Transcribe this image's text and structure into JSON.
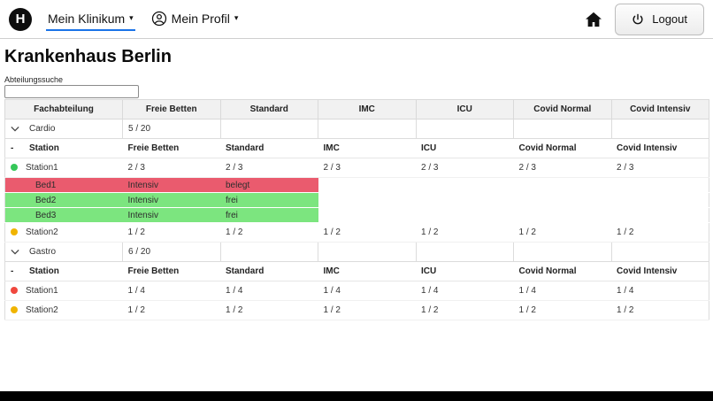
{
  "colors": {
    "accent_blue": "#1a73e8",
    "bed_occupied": "#ea5b6e",
    "bed_free": "#7ce57f",
    "status_green": "#35c759",
    "status_yellow": "#f0b400",
    "status_red": "#f0483e"
  },
  "navbar": {
    "brand_letter": "H",
    "menu_klinikum": "Mein Klinikum",
    "menu_profil": "Mein Profil",
    "logout_label": "Logout"
  },
  "page": {
    "title": "Krankenhaus Berlin",
    "search_label": "Abteilungssuche",
    "search_value": ""
  },
  "table": {
    "headers": [
      "Fachabteilung",
      "Freie Betten",
      "Standard",
      "IMC",
      "ICU",
      "Covid Normal",
      "Covid Intensiv"
    ],
    "station_headers": [
      "Station",
      "Freie Betten",
      "Standard",
      "IMC",
      "ICU",
      "Covid Normal",
      "Covid Intensiv"
    ],
    "collapse_symbol": "-",
    "departments": [
      {
        "name": "Cardio",
        "free_beds": "5 / 20",
        "stations": [
          {
            "name": "Station1",
            "status": "green",
            "values": [
              "2 / 3",
              "2 / 3",
              "2 / 3",
              "2 / 3",
              "2 / 3",
              "2 / 3"
            ],
            "beds": [
              {
                "name": "Bed1",
                "type": "Intensiv",
                "state": "belegt"
              },
              {
                "name": "Bed2",
                "type": "Intensiv",
                "state": "frei"
              },
              {
                "name": "Bed3",
                "type": "Intensiv",
                "state": "frei"
              }
            ]
          },
          {
            "name": "Station2",
            "status": "yellow",
            "values": [
              "1 / 2",
              "1 / 2",
              "1 / 2",
              "1 / 2",
              "1 / 2",
              "1 / 2"
            ],
            "beds": []
          }
        ]
      },
      {
        "name": "Gastro",
        "free_beds": "6 / 20",
        "stations": [
          {
            "name": "Station1",
            "status": "red",
            "values": [
              "1 / 4",
              "1 / 4",
              "1 / 4",
              "1 / 4",
              "1 / 4",
              "1 / 4"
            ],
            "beds": []
          },
          {
            "name": "Station2",
            "status": "yellow",
            "values": [
              "1 / 2",
              "1 / 2",
              "1 / 2",
              "1 / 2",
              "1 / 2",
              "1 / 2"
            ],
            "beds": []
          }
        ]
      }
    ]
  }
}
